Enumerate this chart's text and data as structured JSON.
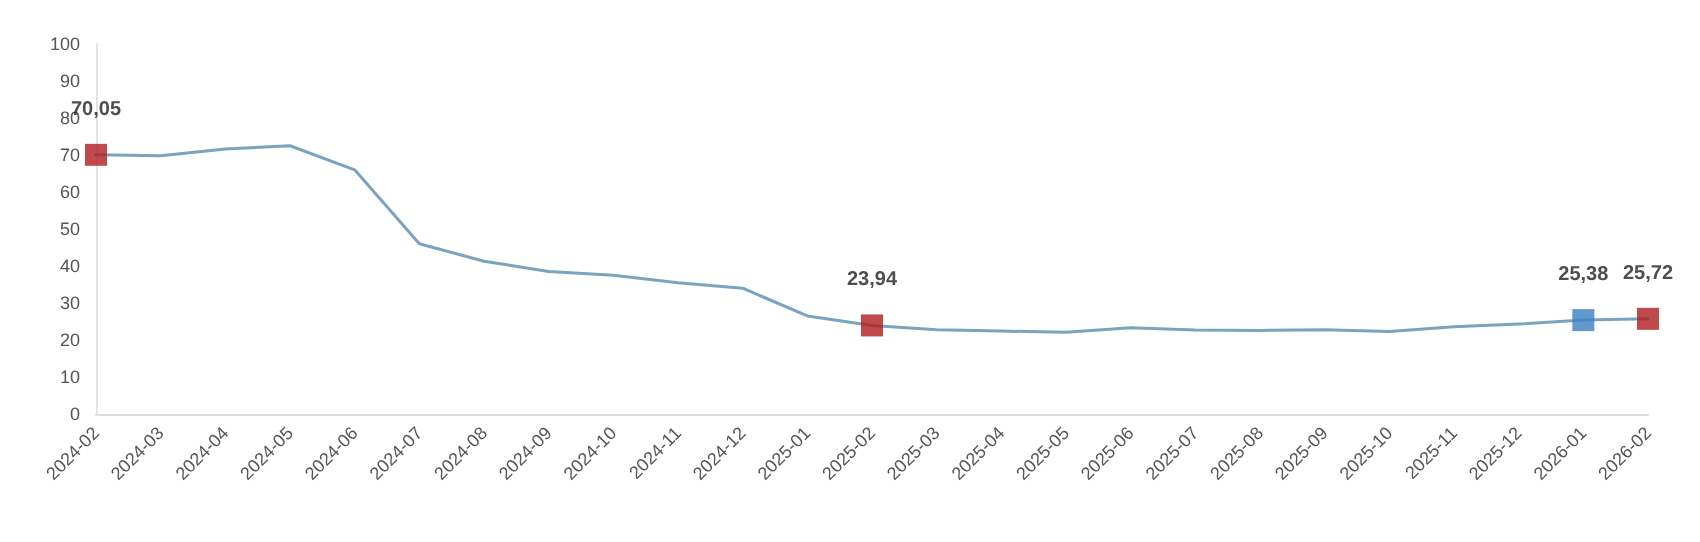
{
  "chart_data": {
    "type": "line",
    "categories": [
      "2024-02",
      "2024-03",
      "2024-04",
      "2024-05",
      "2024-06",
      "2024-07",
      "2024-08",
      "2024-09",
      "2024-10",
      "2024-11",
      "2024-12",
      "2025-01",
      "2025-02",
      "2025-03",
      "2025-04",
      "2025-05",
      "2025-06",
      "2025-07",
      "2025-08",
      "2025-09",
      "2025-10",
      "2025-11",
      "2025-12",
      "2026-01",
      "2026-02"
    ],
    "series": [
      {
        "color": "#7aa3c0",
        "values": [
          70.05,
          69.8,
          71.6,
          72.5,
          66,
          46,
          41.3,
          38.5,
          37.5,
          35.5,
          34,
          26.5,
          23.94,
          22.8,
          22.4,
          22.1,
          23.3,
          22.7,
          22.6,
          22.8,
          22.3,
          23.6,
          24.3,
          25.38,
          25.72
        ]
      },
      {
        "type": "scatter",
        "values": [
          70.05,
          null,
          null,
          null,
          null,
          null,
          null,
          null,
          null,
          null,
          null,
          null,
          23.94,
          null,
          null,
          null,
          null,
          null,
          null,
          null,
          null,
          null,
          null,
          25.38,
          25.72
        ],
        "colors": [
          "#b01c22",
          null,
          null,
          null,
          null,
          null,
          null,
          null,
          null,
          null,
          null,
          null,
          "#b01c22",
          null,
          null,
          null,
          null,
          null,
          null,
          null,
          null,
          null,
          null,
          "#3a80c0",
          "#b01c22"
        ],
        "value_labels": [
          "70,05",
          null,
          null,
          null,
          null,
          null,
          null,
          null,
          null,
          null,
          null,
          null,
          "23,94",
          null,
          null,
          null,
          null,
          null,
          null,
          null,
          null,
          null,
          null,
          "25,38",
          "25,72"
        ],
        "marker": "square"
      }
    ],
    "ylim": [
      0,
      100
    ],
    "yticks": [
      0,
      10,
      20,
      30,
      40,
      50,
      60,
      70,
      80,
      90,
      100
    ],
    "grid": false,
    "marker": "none",
    "line_style": "solid"
  }
}
